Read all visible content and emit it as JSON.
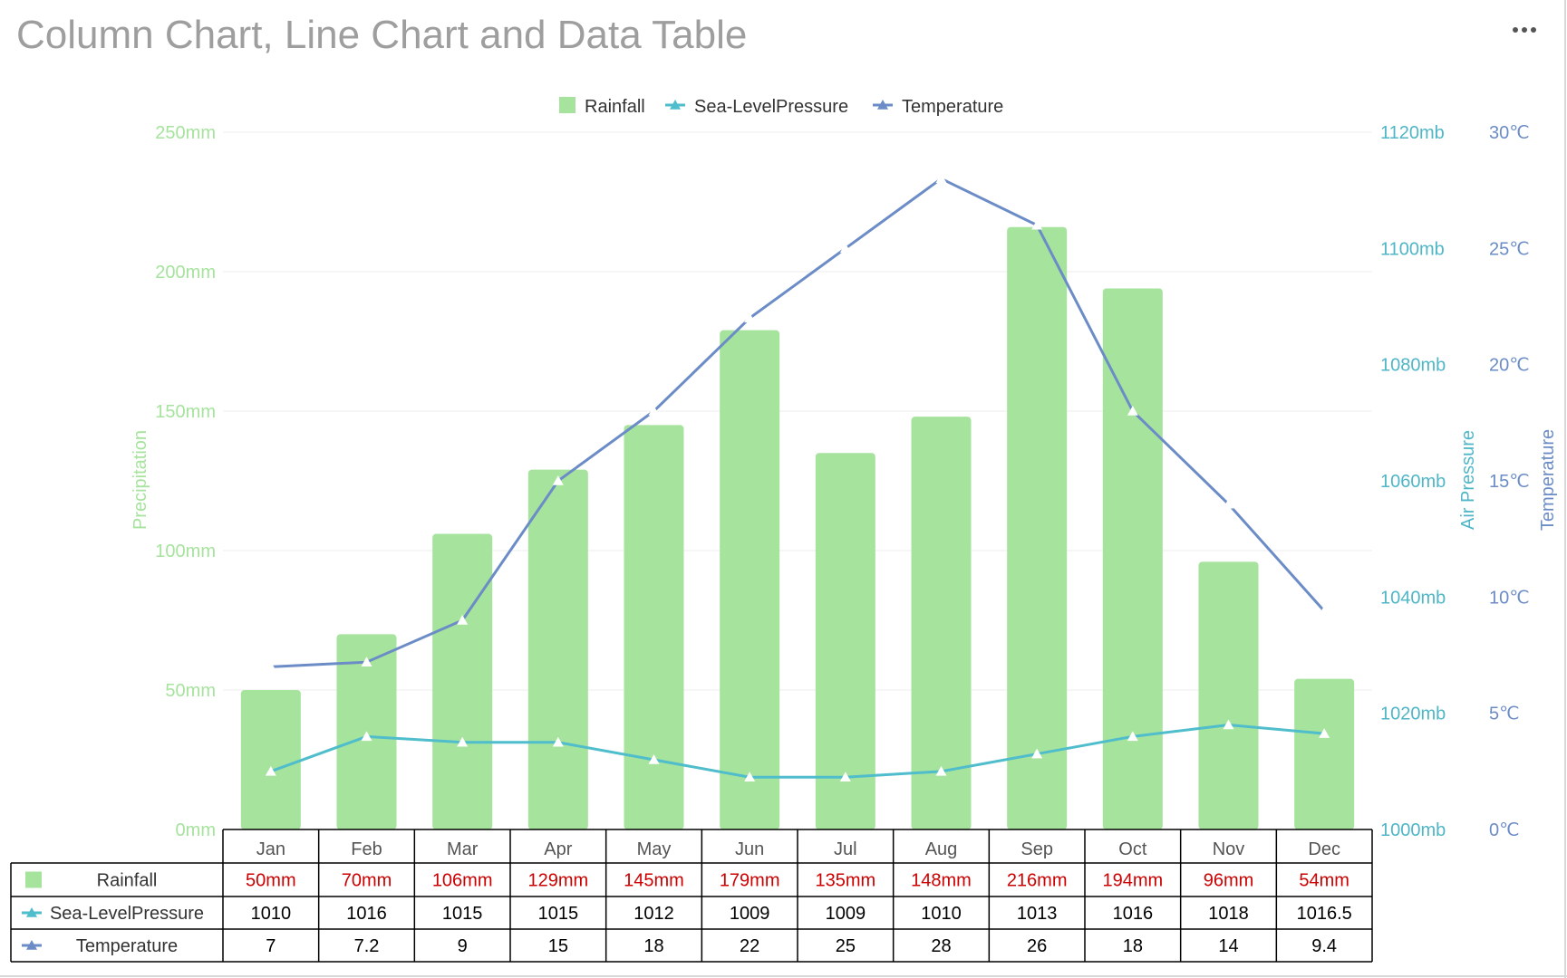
{
  "title": "Column Chart, Line Chart and Data Table",
  "menu_icon": "more-dots-icon",
  "colors": {
    "rainfall": "#a6e39d",
    "pressure": "#4fbdcb",
    "temperature": "#6b8cc6",
    "precip_axis": "#a6e39d",
    "pressure_axis": "#4fb6c7",
    "temp_axis": "#6b8cc6",
    "table_value_red": "#cc0000",
    "gridline": "#eeeeee"
  },
  "chart_data": {
    "type": "bar",
    "categories": [
      "Jan",
      "Feb",
      "Mar",
      "Apr",
      "May",
      "Jun",
      "Jul",
      "Aug",
      "Sep",
      "Oct",
      "Nov",
      "Dec"
    ],
    "series": [
      {
        "name": "Rainfall",
        "type": "bar",
        "axis": "precipitation",
        "values": [
          50,
          70,
          106,
          129,
          145,
          179,
          135,
          148,
          216,
          194,
          96,
          54
        ],
        "labels": [
          "50mm",
          "70mm",
          "106mm",
          "129mm",
          "145mm",
          "179mm",
          "135mm",
          "148mm",
          "216mm",
          "194mm",
          "96mm",
          "54mm"
        ]
      },
      {
        "name": "Sea-LevelPressure",
        "type": "line",
        "axis": "pressure",
        "values": [
          1010,
          1016,
          1015,
          1015,
          1012,
          1009,
          1009,
          1010,
          1013,
          1016,
          1018,
          1016.5
        ],
        "labels": [
          "1010",
          "1016",
          "1015",
          "1015",
          "1012",
          "1009",
          "1009",
          "1010",
          "1013",
          "1016",
          "1018",
          "1016.5"
        ]
      },
      {
        "name": "Temperature",
        "type": "line",
        "axis": "temperature",
        "values": [
          7,
          7.2,
          9,
          15,
          18,
          22,
          25,
          28,
          26,
          18,
          14,
          9.4
        ],
        "labels": [
          "7",
          "7.2",
          "9",
          "15",
          "18",
          "22",
          "25",
          "28",
          "26",
          "18",
          "14",
          "9.4"
        ]
      }
    ],
    "axes": {
      "precipitation": {
        "label": "Precipitation",
        "range": [
          0,
          250
        ],
        "ticks": [
          0,
          50,
          100,
          150,
          200,
          250
        ],
        "tick_labels": [
          "0mm",
          "50mm",
          "100mm",
          "150mm",
          "200mm",
          "250mm"
        ]
      },
      "pressure": {
        "label": "Air Pressure",
        "range": [
          1000,
          1120
        ],
        "ticks": [
          1000,
          1020,
          1040,
          1060,
          1080,
          1100,
          1120
        ],
        "tick_labels": [
          "1000mb",
          "1020mb",
          "1040mb",
          "1060mb",
          "1080mb",
          "1100mb",
          "1120mb"
        ]
      },
      "temperature": {
        "label": "Temperature",
        "range": [
          0,
          30
        ],
        "ticks": [
          0,
          5,
          10,
          15,
          20,
          25,
          30
        ],
        "tick_labels": [
          "0℃",
          "5℃",
          "10℃",
          "15℃",
          "20℃",
          "25℃",
          "30℃"
        ]
      }
    },
    "legend": {
      "position": "top-center",
      "entries": [
        "Rainfall",
        "Sea-LevelPressure",
        "Temperature"
      ]
    },
    "grid": true,
    "data_table": true
  }
}
